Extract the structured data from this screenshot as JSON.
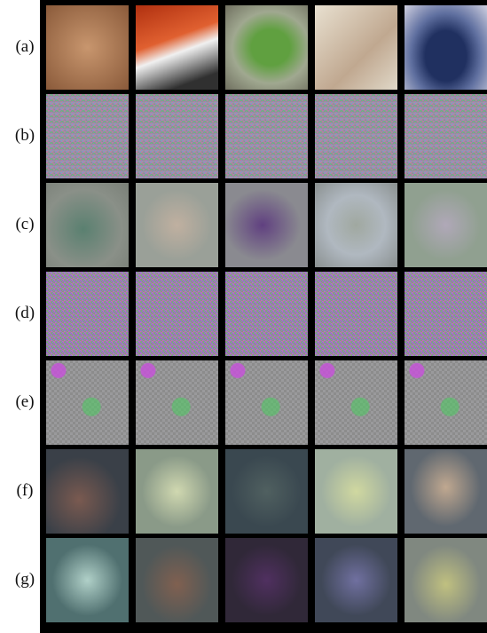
{
  "rows": [
    {
      "label": "(a)"
    },
    {
      "label": "(b)"
    },
    {
      "label": "(c)"
    },
    {
      "label": "(d)"
    },
    {
      "label": "(e)"
    },
    {
      "label": "(f)"
    },
    {
      "label": "(g)"
    }
  ]
}
